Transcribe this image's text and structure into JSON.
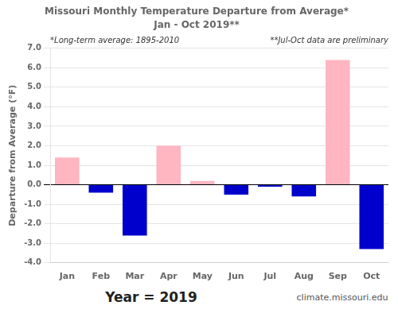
{
  "chart_data": {
    "type": "bar",
    "title": "Missouri Monthly Temperature Departure from Average*",
    "subtitle": "Jan - Oct 2019**",
    "ylabel": "Departure from Average (°F)",
    "annotations": [
      "*Long-term average: 1895-2010",
      "**Jul-Oct data are preliminary",
      "Year = 2019",
      "climate.missouri.edu"
    ],
    "categories": [
      "Jan",
      "Feb",
      "Mar",
      "Apr",
      "May",
      "Jun",
      "Jul",
      "Aug",
      "Sep",
      "Oct"
    ],
    "values": [
      1.4,
      -0.4,
      -2.6,
      2.0,
      0.2,
      -0.5,
      -0.1,
      -0.6,
      6.4,
      -3.3
    ],
    "colors": [
      "#FFB6C1",
      "#0000CC",
      "#0000CC",
      "#FFB6C1",
      "#FFB6C1",
      "#0000CC",
      "#0000CC",
      "#0000CC",
      "#FFB6C1",
      "#0000CC"
    ],
    "ylim": [
      -4.0,
      7.0
    ],
    "yticks": [
      {
        "value": -4.0,
        "label": "-4.0"
      },
      {
        "value": -3.0,
        "label": "-3.0"
      },
      {
        "value": -2.0,
        "label": "-2.0"
      },
      {
        "value": -1.0,
        "label": "-1.0"
      },
      {
        "value": 0.0,
        "label": "0.0"
      },
      {
        "value": 1.0,
        "label": "1.0"
      },
      {
        "value": 2.0,
        "label": "2.0"
      },
      {
        "value": 3.0,
        "label": "3.0"
      },
      {
        "value": 4.0,
        "label": "4.0"
      },
      {
        "value": 5.0,
        "label": "5.0"
      },
      {
        "value": 6.0,
        "label": "6.0"
      },
      {
        "value": 7.0,
        "label": "7.0"
      }
    ],
    "grid": true
  }
}
